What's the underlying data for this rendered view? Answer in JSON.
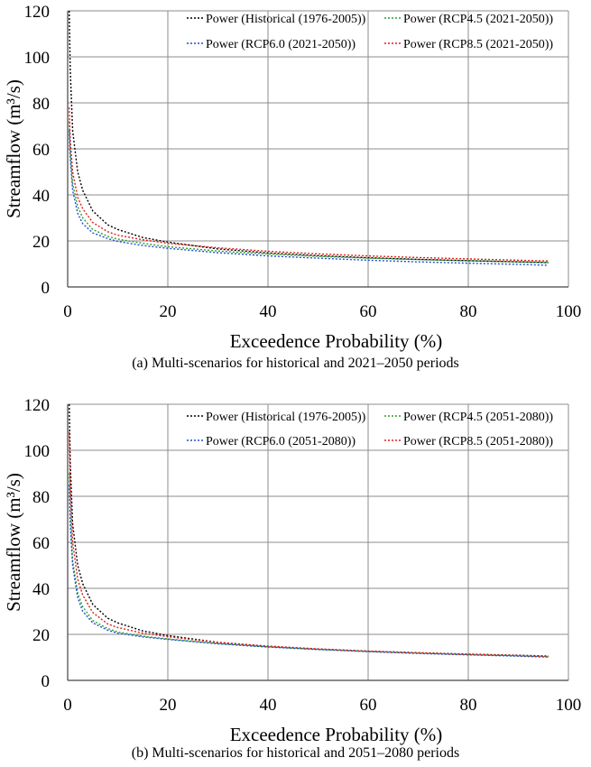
{
  "chart_data": [
    {
      "type": "line",
      "panel": "a",
      "caption": "(a) Multi-scenarios for historical and 2021–2050 periods",
      "xlabel": "Exceedence Probability (%)",
      "ylabel": "Streamflow (m³/s)",
      "xlim": [
        0,
        100
      ],
      "ylim": [
        0,
        120
      ],
      "xticks": [
        0,
        20,
        40,
        60,
        80,
        100
      ],
      "yticks": [
        0,
        20,
        40,
        60,
        80,
        100,
        120
      ],
      "grid": true,
      "legend_position": "top-right",
      "series": [
        {
          "name": "Power (Historical (1976-2005))",
          "color": "#000000",
          "dash": "dotted",
          "x": [
            0.3,
            0.5,
            1,
            2,
            3,
            5,
            8,
            10,
            15,
            20,
            30,
            40,
            50,
            60,
            70,
            80,
            90,
            96
          ],
          "y": [
            120,
            95,
            68,
            50,
            42,
            33,
            27,
            25,
            21.5,
            19.5,
            16.5,
            14.8,
            13.6,
            12.7,
            12.0,
            11.4,
            10.9,
            10.6
          ]
        },
        {
          "name": "Power (RCP4.5 (2021-2050))",
          "color": "#2ca02c",
          "dash": "dotted",
          "x": [
            0.3,
            0.5,
            1,
            2,
            3,
            5,
            8,
            10,
            15,
            20,
            30,
            40,
            50,
            60,
            70,
            80,
            90,
            96
          ],
          "y": [
            72,
            60,
            45,
            35,
            30,
            25,
            22,
            20.8,
            19,
            17.5,
            15.6,
            14.3,
            13.3,
            12.5,
            11.9,
            11.4,
            10.9,
            10.6
          ]
        },
        {
          "name": "Power (RCP6.0 (2021-2050))",
          "color": "#1f4fd1",
          "dash": "dotted",
          "x": [
            0.3,
            0.5,
            1,
            2,
            3,
            5,
            8,
            10,
            15,
            20,
            30,
            40,
            50,
            60,
            70,
            80,
            90,
            96
          ],
          "y": [
            68,
            56,
            42,
            32,
            27.5,
            23.5,
            21,
            19.8,
            18,
            16.8,
            14.9,
            13.5,
            12.5,
            11.6,
            10.9,
            10.3,
            9.8,
            9.4
          ]
        },
        {
          "name": "Power (RCP8.5 (2021-2050))",
          "color": "#e41a1c",
          "dash": "dotted",
          "x": [
            0.3,
            0.5,
            1,
            2,
            3,
            5,
            8,
            10,
            15,
            20,
            30,
            40,
            50,
            60,
            70,
            80,
            90,
            96
          ],
          "y": [
            78,
            64,
            50,
            39,
            34,
            28,
            24,
            22.5,
            20.5,
            19,
            17,
            15.5,
            14.4,
            13.5,
            12.8,
            12.2,
            11.6,
            11.3
          ]
        }
      ]
    },
    {
      "type": "line",
      "panel": "b",
      "caption": "(b) Multi-scenarios for historical and 2051–2080 periods",
      "xlabel": "Exceedence Probability (%)",
      "ylabel": "Streamflow (m³/s)",
      "xlim": [
        0,
        100
      ],
      "ylim": [
        0,
        120
      ],
      "xticks": [
        0,
        20,
        40,
        60,
        80,
        100
      ],
      "yticks": [
        0,
        20,
        40,
        60,
        80,
        100,
        120
      ],
      "grid": true,
      "legend_position": "top-right",
      "series": [
        {
          "name": "Power (Historical (1976-2005))",
          "color": "#000000",
          "dash": "dotted",
          "x": [
            0.3,
            0.5,
            1,
            2,
            3,
            5,
            8,
            10,
            15,
            20,
            30,
            40,
            50,
            60,
            70,
            80,
            90,
            96
          ],
          "y": [
            120,
            95,
            68,
            50,
            42,
            33,
            27,
            25,
            21.5,
            19.5,
            16.5,
            14.8,
            13.6,
            12.7,
            12.0,
            11.4,
            10.9,
            10.6
          ]
        },
        {
          "name": "Power (RCP4.5 (2051-2080))",
          "color": "#2ca02c",
          "dash": "dotted",
          "x": [
            0.3,
            0.5,
            1,
            2,
            3,
            5,
            8,
            10,
            15,
            20,
            30,
            40,
            50,
            60,
            70,
            80,
            90,
            96
          ],
          "y": [
            90,
            72,
            52,
            38,
            32,
            26,
            22.5,
            21,
            19.2,
            18,
            16,
            14.6,
            13.5,
            12.6,
            11.9,
            11.2,
            10.7,
            10.3
          ]
        },
        {
          "name": "Power (RCP6.0 (2051-2080))",
          "color": "#1f4fd1",
          "dash": "dotted",
          "x": [
            0.3,
            0.5,
            1,
            2,
            3,
            5,
            8,
            10,
            15,
            20,
            30,
            40,
            50,
            60,
            70,
            80,
            90,
            96
          ],
          "y": [
            85,
            68,
            50,
            36,
            30,
            25,
            21.8,
            20.5,
            18.9,
            17.8,
            15.9,
            14.5,
            13.4,
            12.5,
            11.7,
            11.1,
            10.5,
            10.1
          ]
        },
        {
          "name": "Power (RCP8.5 (2051-2080))",
          "color": "#e41a1c",
          "dash": "dotted",
          "x": [
            0.3,
            0.5,
            1,
            2,
            3,
            5,
            8,
            10,
            15,
            20,
            30,
            40,
            50,
            60,
            70,
            80,
            90,
            96
          ],
          "y": [
            108,
            85,
            60,
            44,
            37,
            29.5,
            24.5,
            23,
            20.5,
            19,
            16.5,
            14.9,
            13.7,
            12.7,
            12.0,
            11.3,
            10.8,
            10.4
          ]
        }
      ]
    }
  ]
}
